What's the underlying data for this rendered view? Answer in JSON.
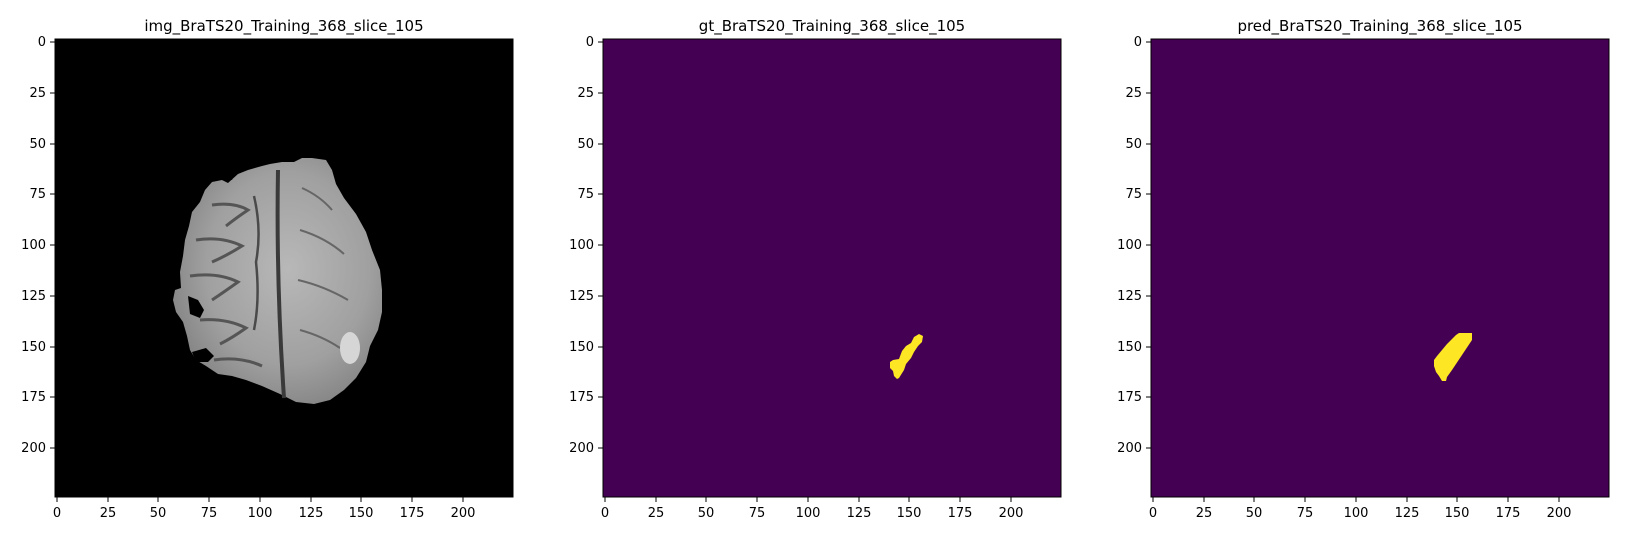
{
  "figure": {
    "panels": [
      {
        "title": "img_BraTS20_Training_368_slice_105",
        "kind": "mri"
      },
      {
        "title": "gt_BraTS20_Training_368_slice_105",
        "kind": "mask_gt"
      },
      {
        "title": "pred_BraTS20_Training_368_slice_105",
        "kind": "mask_pred"
      }
    ],
    "x_ticks": [
      "0",
      "25",
      "50",
      "75",
      "100",
      "125",
      "150",
      "175",
      "200"
    ],
    "y_ticks": [
      "0",
      "25",
      "50",
      "75",
      "100",
      "125",
      "150",
      "175",
      "200"
    ],
    "colors": {
      "mri_background": "#000000",
      "mask_background": "#440154",
      "mask_foreground": "#fde725"
    }
  }
}
